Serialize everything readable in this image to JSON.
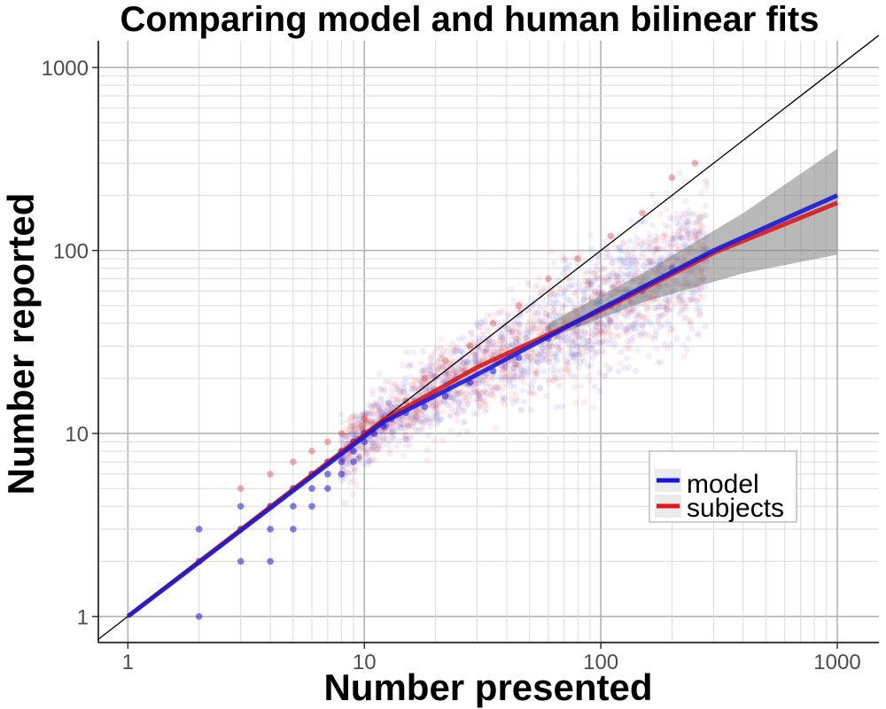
{
  "chart_data": {
    "type": "scatter",
    "title": "Comparing model and human bilinear fits",
    "xlabel": "Number presented",
    "ylabel": "Number reported",
    "x_scale": "log",
    "y_scale": "log",
    "xlim": [
      0.75,
      1500
    ],
    "ylim": [
      0.72,
      1400
    ],
    "x_ticks": [
      1,
      10,
      100,
      1000
    ],
    "x_tick_labels": [
      "1",
      "10",
      "100",
      "1000"
    ],
    "y_ticks": [
      1,
      10,
      100,
      1000
    ],
    "y_tick_labels": [
      "1",
      "10",
      "100",
      "1000"
    ],
    "grid": true,
    "legend": {
      "position": "bottom-right",
      "entries": [
        {
          "label": "model",
          "color": "#1414e6"
        },
        {
          "label": "subjects",
          "color": "#e61414"
        }
      ]
    },
    "identity_line": {
      "from": [
        0.75,
        0.75
      ],
      "to": [
        1500,
        1500
      ]
    },
    "series": [
      {
        "name": "model",
        "color": "#1a1ad9",
        "fit": [
          [
            1,
            1
          ],
          [
            12,
            11.5
          ],
          [
            30,
            21
          ],
          [
            100,
            48
          ],
          [
            300,
            100
          ],
          [
            1000,
            200
          ]
        ],
        "points": [
          [
            2,
            1
          ],
          [
            2,
            2
          ],
          [
            2,
            3
          ],
          [
            3,
            2
          ],
          [
            3,
            3
          ],
          [
            3,
            4
          ],
          [
            4,
            3
          ],
          [
            4,
            4
          ],
          [
            4,
            2
          ],
          [
            5,
            5
          ],
          [
            5,
            4
          ],
          [
            5,
            3
          ],
          [
            6,
            5
          ],
          [
            6,
            6
          ],
          [
            6,
            4
          ],
          [
            7,
            6
          ],
          [
            7,
            7
          ],
          [
            7,
            5
          ],
          [
            8,
            7
          ],
          [
            8,
            8
          ],
          [
            8,
            6
          ],
          [
            9,
            8
          ],
          [
            9,
            9
          ],
          [
            9,
            7
          ],
          [
            10,
            9
          ],
          [
            10,
            10
          ],
          [
            11,
            10
          ],
          [
            12,
            11
          ],
          [
            13,
            12
          ],
          [
            15,
            13
          ],
          [
            18,
            14
          ],
          [
            22,
            16
          ],
          [
            28,
            19
          ],
          [
            35,
            22
          ],
          [
            45,
            26
          ],
          [
            60,
            33
          ],
          [
            80,
            40
          ],
          [
            110,
            50
          ],
          [
            150,
            60
          ],
          [
            200,
            80
          ]
        ]
      },
      {
        "name": "subjects",
        "color": "#d91a1a",
        "fit": [
          [
            1,
            1
          ],
          [
            12,
            11.8
          ],
          [
            30,
            23
          ],
          [
            100,
            47
          ],
          [
            300,
            97
          ],
          [
            1000,
            182
          ]
        ],
        "points": [
          [
            2,
            2
          ],
          [
            3,
            3
          ],
          [
            3,
            5
          ],
          [
            4,
            4
          ],
          [
            4,
            6
          ],
          [
            5,
            5
          ],
          [
            5,
            7
          ],
          [
            6,
            6
          ],
          [
            6,
            8
          ],
          [
            7,
            7
          ],
          [
            7,
            9
          ],
          [
            8,
            8
          ],
          [
            8,
            10
          ],
          [
            9,
            9
          ],
          [
            10,
            10
          ],
          [
            10,
            12
          ],
          [
            12,
            12
          ],
          [
            15,
            15
          ],
          [
            18,
            20
          ],
          [
            22,
            25
          ],
          [
            28,
            30
          ],
          [
            35,
            40
          ],
          [
            45,
            50
          ],
          [
            60,
            70
          ],
          [
            80,
            90
          ],
          [
            110,
            120
          ],
          [
            150,
            160
          ],
          [
            200,
            250
          ],
          [
            250,
            300
          ]
        ]
      }
    ],
    "confidence_band": {
      "from_x": 60,
      "to_x": 1000,
      "lower": [
        [
          60,
          33
        ],
        [
          150,
          52
        ],
        [
          400,
          75
        ],
        [
          1000,
          95
        ]
      ],
      "upper": [
        [
          60,
          40
        ],
        [
          150,
          75
        ],
        [
          400,
          160
        ],
        [
          1000,
          360
        ]
      ]
    },
    "background_scatter_density": "dense translucent clouds around the fits for both series"
  }
}
